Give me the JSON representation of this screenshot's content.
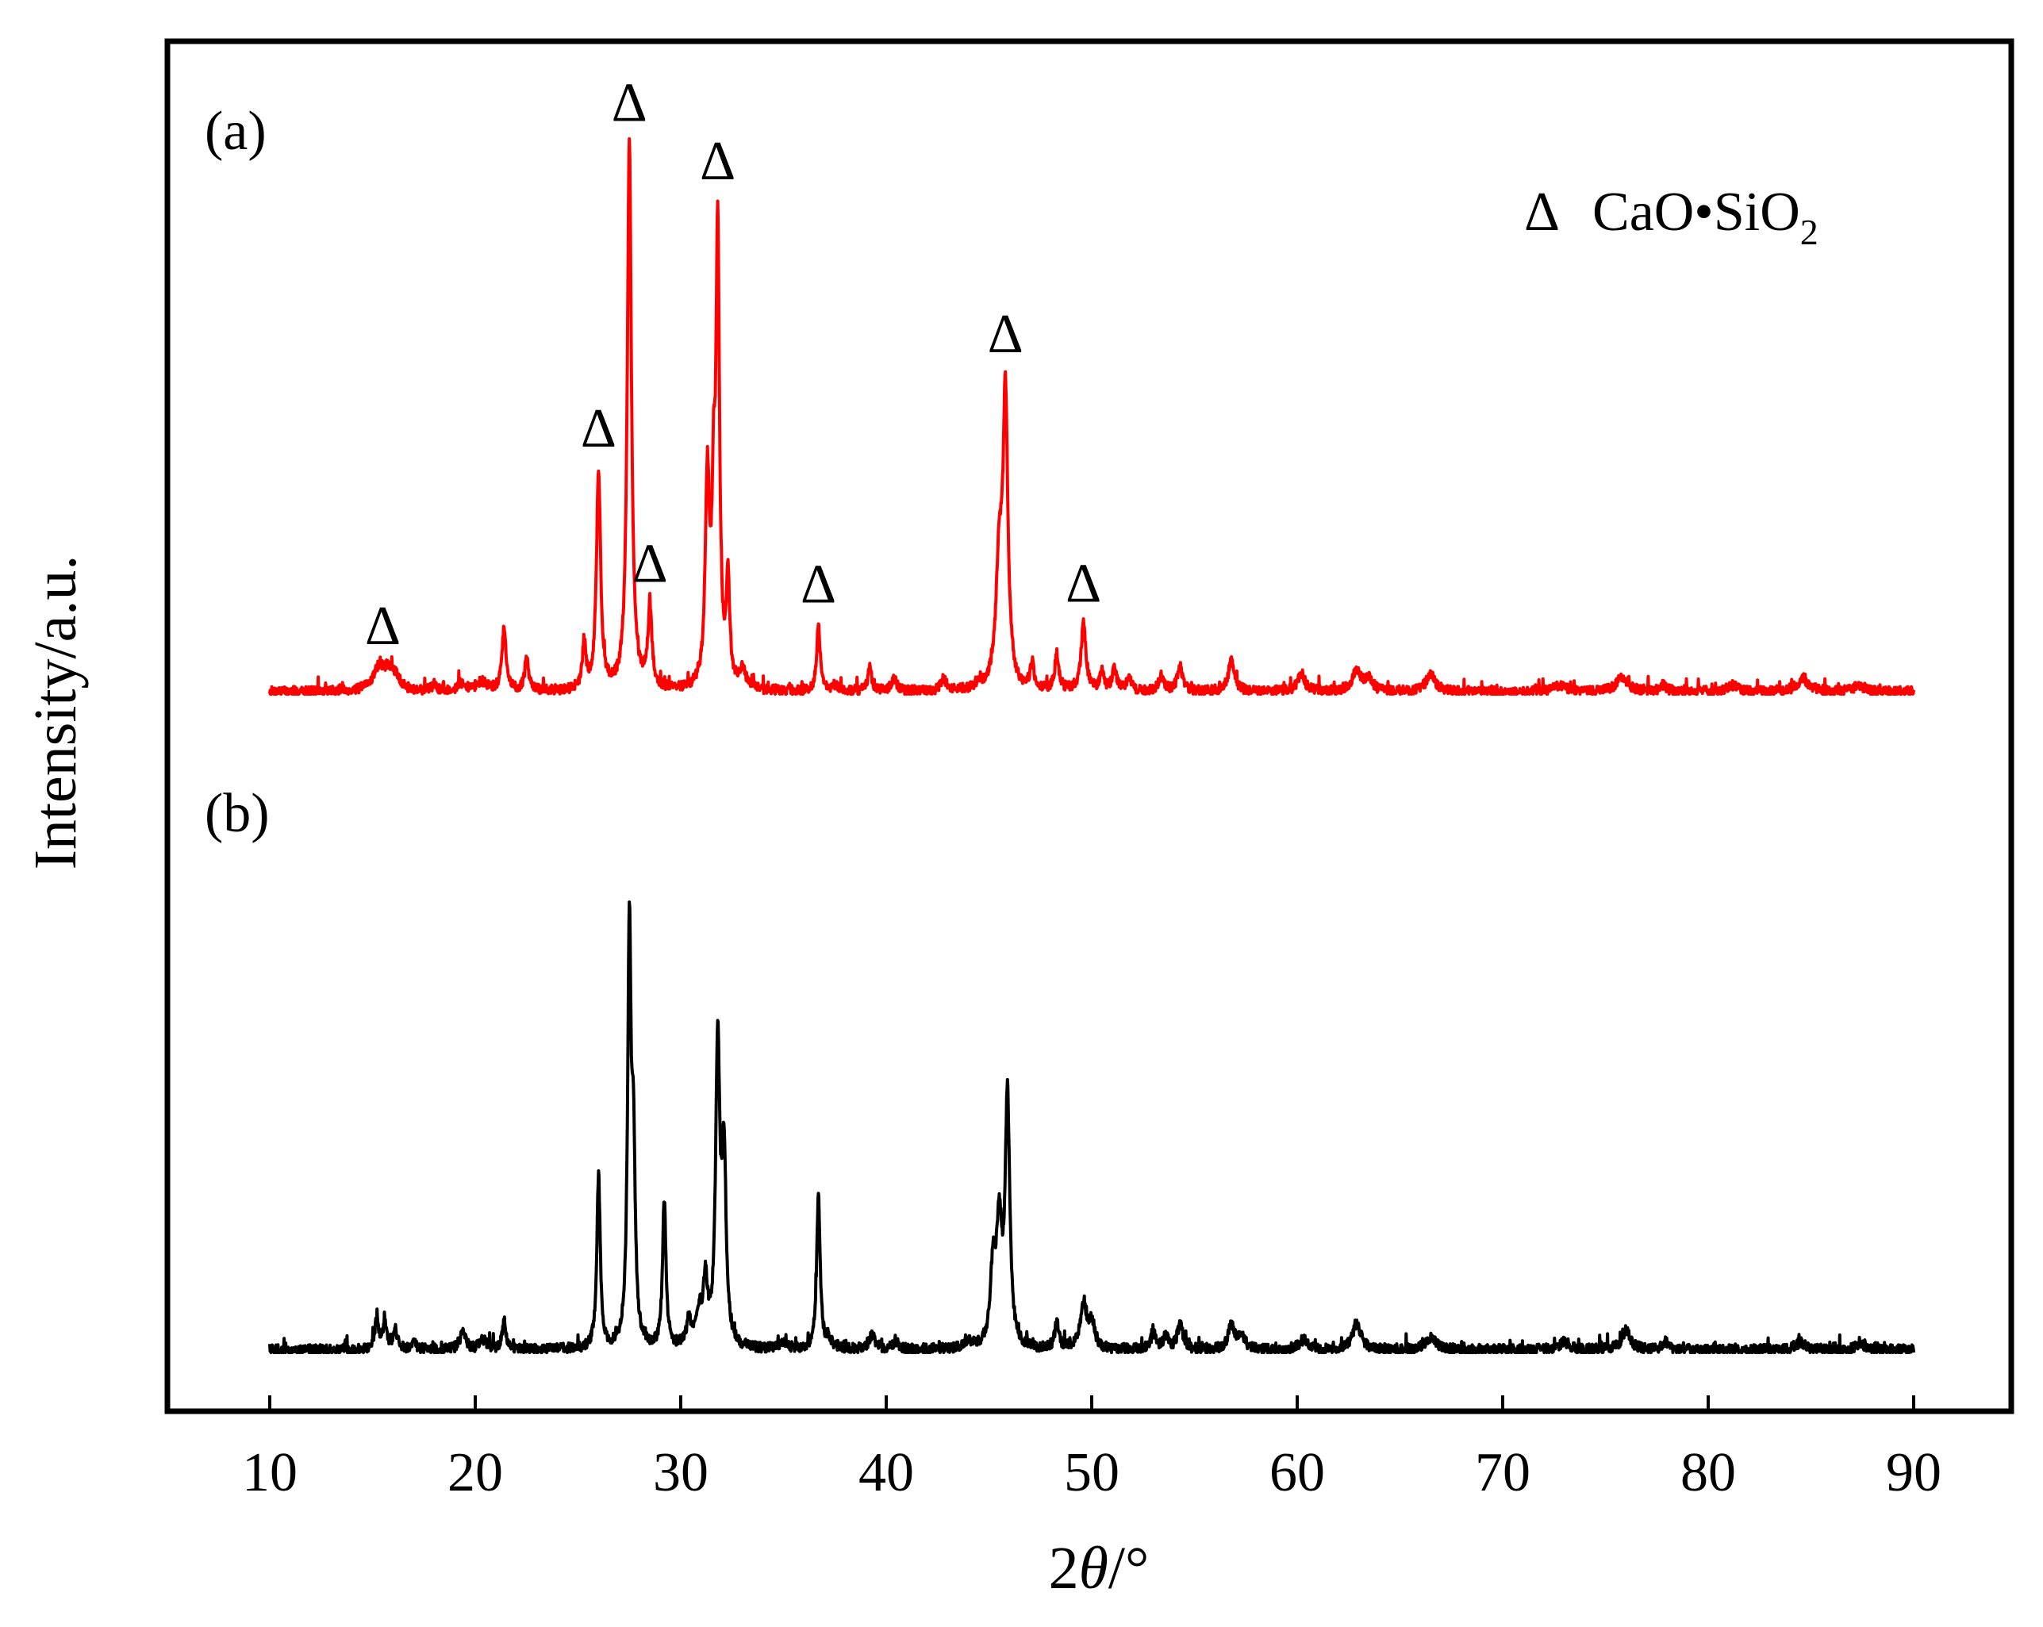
{
  "chart_data": {
    "type": "line",
    "xlabel_prefix": "2",
    "xlabel_italic": "θ",
    "xlabel_suffix": "/°",
    "ylabel": "Intensity/a.u.",
    "xlim": [
      5,
      95
    ],
    "x_ticks": [
      10,
      20,
      30,
      40,
      50,
      60,
      70,
      80,
      90
    ],
    "y_ticks_shown": false,
    "grid": false,
    "legend": {
      "position": "top-right",
      "marker": "Δ",
      "label_main": "CaO•SiO",
      "label_sub": "2"
    },
    "panel_labels": [
      "(a)",
      "(b)"
    ],
    "series": [
      {
        "name": "(a)",
        "color": "#ff0000",
        "baseline": 0,
        "noise_seed": 7,
        "peaks": [
          [
            15.3,
            3.5,
            0.35
          ],
          [
            15.8,
            3,
            0.3
          ],
          [
            16.2,
            1.5,
            0.2
          ],
          [
            18.0,
            1,
            0.15
          ],
          [
            19.3,
            1.2,
            0.2
          ],
          [
            20.3,
            1.5,
            0.3
          ],
          [
            21.4,
            10,
            0.12
          ],
          [
            22.5,
            5,
            0.12
          ],
          [
            25.3,
            7.5,
            0.1
          ],
          [
            26.0,
            36,
            0.12
          ],
          [
            27.5,
            90,
            0.12
          ],
          [
            28.5,
            13,
            0.12
          ],
          [
            31.3,
            34,
            0.12
          ],
          [
            31.6,
            26,
            0.1
          ],
          [
            31.8,
            73,
            0.1
          ],
          [
            32.3,
            17,
            0.1
          ],
          [
            33.0,
            3,
            0.2
          ],
          [
            36.7,
            11,
            0.1
          ],
          [
            37.5,
            0.8,
            0.2
          ],
          [
            39.2,
            4,
            0.1
          ],
          [
            40.4,
            2,
            0.15
          ],
          [
            42.8,
            2,
            0.15
          ],
          [
            44.5,
            1,
            0.2
          ],
          [
            45.5,
            20,
            0.18
          ],
          [
            45.8,
            47,
            0.14
          ],
          [
            47.1,
            4,
            0.12
          ],
          [
            48.3,
            6,
            0.12
          ],
          [
            49.6,
            11,
            0.14
          ],
          [
            50.5,
            3,
            0.12
          ],
          [
            51.1,
            4,
            0.12
          ],
          [
            51.8,
            2,
            0.15
          ],
          [
            53.4,
            2.5,
            0.15
          ],
          [
            54.3,
            4,
            0.15
          ],
          [
            56.8,
            5,
            0.18
          ],
          [
            60.2,
            3,
            0.2
          ],
          [
            62.9,
            3.5,
            0.25
          ],
          [
            63.5,
            2,
            0.2
          ],
          [
            66.5,
            3,
            0.25
          ],
          [
            72.8,
            1,
            0.3
          ],
          [
            75.8,
            2.5,
            0.3
          ],
          [
            77.8,
            1,
            0.2
          ],
          [
            81.2,
            1,
            0.3
          ],
          [
            84.6,
            2,
            0.35
          ],
          [
            87.3,
            1,
            0.25
          ]
        ],
        "triangle_markers_x": [
          15.5,
          26.0,
          27.5,
          28.5,
          31.8,
          36.7,
          45.8,
          49.6
        ]
      },
      {
        "name": "(b)",
        "color": "#000000",
        "baseline": 0,
        "noise_seed": 19,
        "peaks": [
          [
            15.2,
            4.5,
            0.12
          ],
          [
            15.6,
            4,
            0.12
          ],
          [
            16.1,
            3,
            0.12
          ],
          [
            17.0,
            1,
            0.15
          ],
          [
            19.4,
            3,
            0.15
          ],
          [
            20.4,
            1.5,
            0.2
          ],
          [
            21.4,
            4.5,
            0.1
          ],
          [
            26.0,
            27,
            0.1
          ],
          [
            27.5,
            64,
            0.1
          ],
          [
            27.7,
            28,
            0.1
          ],
          [
            29.2,
            23,
            0.1
          ],
          [
            30.4,
            4,
            0.15
          ],
          [
            30.9,
            5,
            0.15
          ],
          [
            31.2,
            10,
            0.12
          ],
          [
            31.8,
            47,
            0.12
          ],
          [
            32.1,
            29,
            0.12
          ],
          [
            35.0,
            1,
            0.2
          ],
          [
            36.7,
            24,
            0.1
          ],
          [
            37.2,
            1.5,
            0.15
          ],
          [
            39.3,
            2,
            0.2
          ],
          [
            40.5,
            1,
            0.2
          ],
          [
            44.0,
            1,
            0.25
          ],
          [
            45.2,
            12,
            0.15
          ],
          [
            45.5,
            18,
            0.15
          ],
          [
            45.9,
            39,
            0.13
          ],
          [
            48.3,
            4,
            0.12
          ],
          [
            49.6,
            7,
            0.18
          ],
          [
            50.0,
            4,
            0.18
          ],
          [
            53.0,
            2.5,
            0.15
          ],
          [
            53.6,
            2,
            0.15
          ],
          [
            54.3,
            4,
            0.15
          ],
          [
            56.8,
            4,
            0.18
          ],
          [
            57.3,
            2,
            0.2
          ],
          [
            60.3,
            1.5,
            0.25
          ],
          [
            62.9,
            4,
            0.25
          ],
          [
            66.5,
            2,
            0.3
          ],
          [
            73.0,
            1.2,
            0.3
          ],
          [
            76.0,
            3,
            0.25
          ],
          [
            77.9,
            1.2,
            0.2
          ],
          [
            84.5,
            1.2,
            0.3
          ],
          [
            87.4,
            1.2,
            0.2
          ]
        ]
      }
    ]
  }
}
